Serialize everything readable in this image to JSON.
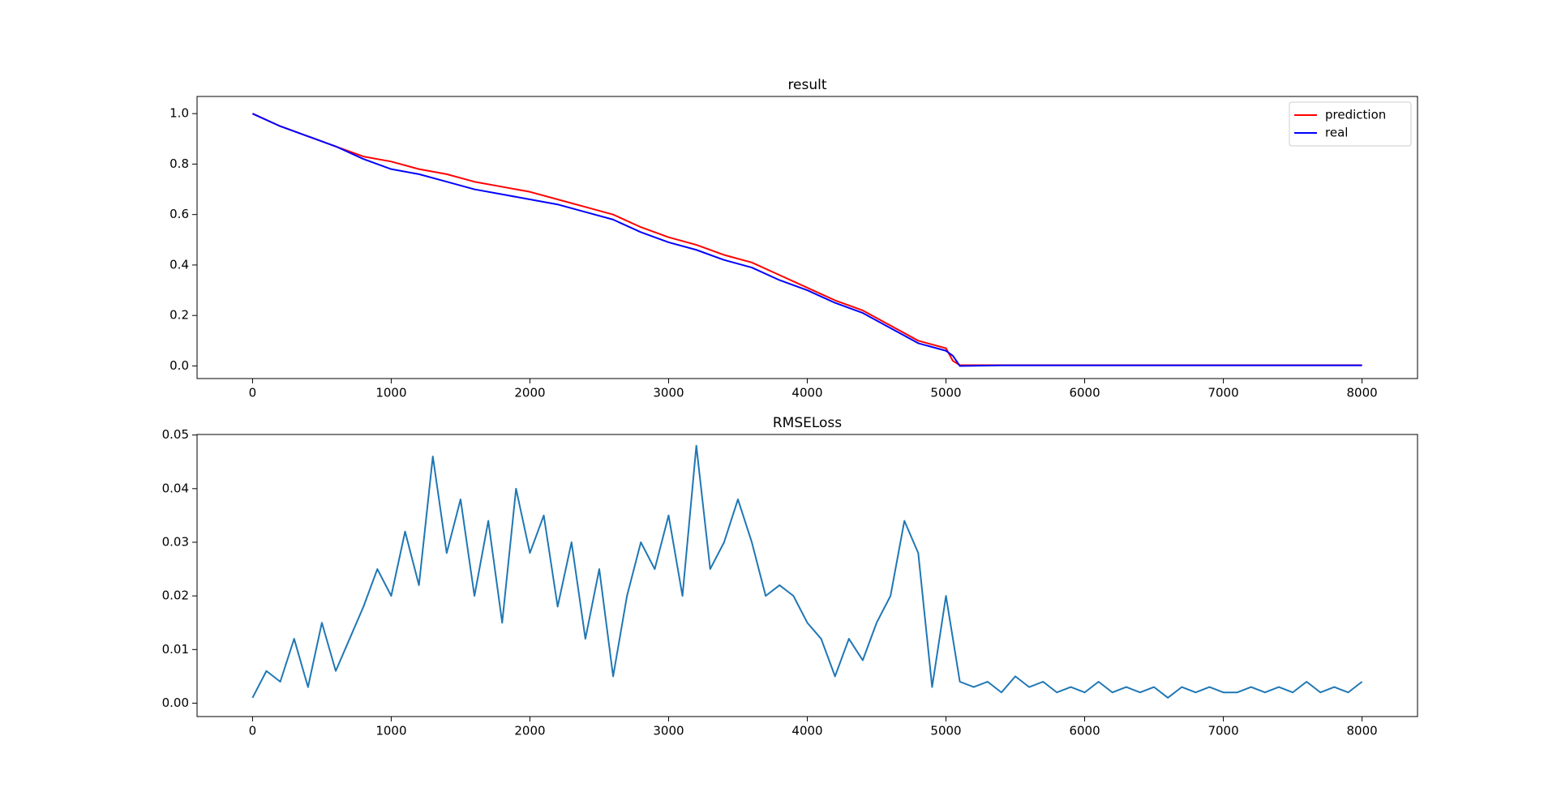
{
  "chart_data": [
    {
      "type": "line",
      "title": "result",
      "legend": "upper right",
      "x": [
        0,
        200,
        400,
        600,
        800,
        1000,
        1200,
        1400,
        1600,
        1800,
        2000,
        2200,
        2400,
        2600,
        2800,
        3000,
        3200,
        3400,
        3600,
        3800,
        4000,
        4200,
        4400,
        4600,
        4800,
        5000,
        5050,
        5100,
        5400,
        5800,
        6200,
        6600,
        7000,
        7400,
        7800,
        8000
      ],
      "series": [
        {
          "name": "prediction",
          "color": "#ff0000",
          "values": [
            1.0,
            0.95,
            0.91,
            0.87,
            0.83,
            0.81,
            0.78,
            0.76,
            0.73,
            0.71,
            0.69,
            0.66,
            0.63,
            0.6,
            0.55,
            0.51,
            0.48,
            0.44,
            0.41,
            0.36,
            0.31,
            0.26,
            0.22,
            0.16,
            0.1,
            0.07,
            0.02,
            0.003,
            0.003,
            0.003,
            0.003,
            0.003,
            0.003,
            0.003,
            0.003,
            0.003
          ]
        },
        {
          "name": "real",
          "color": "#0000ff",
          "values": [
            1.0,
            0.95,
            0.91,
            0.87,
            0.82,
            0.78,
            0.76,
            0.73,
            0.7,
            0.68,
            0.66,
            0.64,
            0.61,
            0.58,
            0.53,
            0.49,
            0.46,
            0.42,
            0.39,
            0.34,
            0.3,
            0.25,
            0.21,
            0.15,
            0.09,
            0.06,
            0.04,
            0.0,
            0.002,
            0.002,
            0.002,
            0.002,
            0.002,
            0.002,
            0.002,
            0.002
          ]
        }
      ],
      "xlim": [
        -400,
        8400
      ],
      "ylim": [
        -0.05,
        1.068
      ],
      "xticks": [
        0,
        1000,
        2000,
        3000,
        4000,
        5000,
        6000,
        7000,
        8000
      ],
      "yticks": [
        {
          "value": 0,
          "label": "0.0"
        },
        0.2,
        0.4,
        0.6,
        0.8,
        {
          "value": 1,
          "label": "1.0"
        }
      ]
    },
    {
      "type": "line",
      "title": "RMSELoss",
      "x": [
        0,
        100,
        200,
        300,
        400,
        500,
        600,
        700,
        800,
        900,
        1000,
        1100,
        1200,
        1300,
        1400,
        1500,
        1600,
        1700,
        1800,
        1900,
        2000,
        2100,
        2200,
        2300,
        2400,
        2500,
        2600,
        2700,
        2800,
        2900,
        3000,
        3100,
        3200,
        3300,
        3400,
        3500,
        3600,
        3700,
        3800,
        3900,
        4000,
        4100,
        4200,
        4300,
        4400,
        4500,
        4600,
        4700,
        4800,
        4900,
        5000,
        5100,
        5200,
        5300,
        5400,
        5500,
        5600,
        5700,
        5800,
        5900,
        6000,
        6100,
        6200,
        6300,
        6400,
        6500,
        6600,
        6700,
        6800,
        6900,
        7000,
        7100,
        7200,
        7300,
        7400,
        7500,
        7600,
        7700,
        7800,
        7900,
        8000
      ],
      "series": [
        {
          "color": "#1f77b4",
          "values": [
            0.001,
            0.006,
            0.004,
            0.012,
            0.003,
            0.015,
            0.006,
            0.012,
            0.018,
            0.025,
            0.02,
            0.032,
            0.022,
            0.046,
            0.028,
            0.038,
            0.02,
            0.034,
            0.015,
            0.04,
            0.028,
            0.035,
            0.018,
            0.03,
            0.012,
            0.025,
            0.005,
            0.02,
            0.03,
            0.025,
            0.035,
            0.02,
            0.048,
            0.025,
            0.03,
            0.038,
            0.03,
            0.02,
            0.022,
            0.02,
            0.015,
            0.012,
            0.005,
            0.012,
            0.008,
            0.015,
            0.02,
            0.034,
            0.028,
            0.003,
            0.02,
            0.004,
            0.003,
            0.004,
            0.002,
            0.005,
            0.003,
            0.004,
            0.002,
            0.003,
            0.002,
            0.004,
            0.002,
            0.003,
            0.002,
            0.003,
            0.001,
            0.003,
            0.002,
            0.003,
            0.002,
            0.002,
            0.003,
            0.002,
            0.003,
            0.002,
            0.004,
            0.002,
            0.003,
            0.002,
            0.004
          ]
        }
      ],
      "xlim": [
        -400,
        8400
      ],
      "ylim": [
        -0.0025,
        0.0501
      ],
      "xticks": [
        0,
        1000,
        2000,
        3000,
        4000,
        5000,
        6000,
        7000,
        8000
      ],
      "yticks": [
        {
          "value": 0,
          "label": "0.00"
        },
        {
          "value": 0.01,
          "label": "0.01"
        },
        {
          "value": 0.02,
          "label": "0.02"
        },
        {
          "value": 0.03,
          "label": "0.03"
        },
        {
          "value": 0.04,
          "label": "0.04"
        },
        {
          "value": 0.05,
          "label": "0.05"
        }
      ]
    }
  ]
}
